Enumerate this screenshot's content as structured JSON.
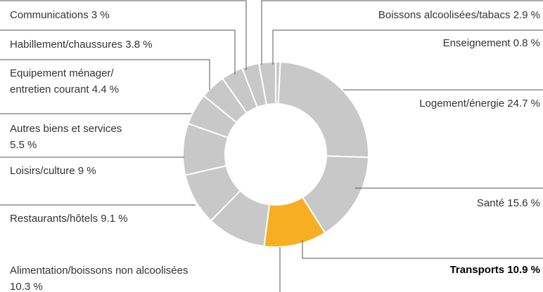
{
  "chart_data": {
    "type": "donut",
    "categories": [
      "Enseignement",
      "Logement/énergie",
      "Santé",
      "Transports",
      "Alimentation/boissons non alcoolisées",
      "Restaurants/hôtels",
      "Loisirs/culture",
      "Autres biens et services",
      "Equipement ménager/\nentretien courant",
      "Habillement/chaussures",
      "Communications",
      "Boissons alcoolisées/tabacs"
    ],
    "values": [
      0.8,
      24.7,
      15.6,
      10.9,
      10.3,
      9.1,
      9,
      5.5,
      4.4,
      3.8,
      3,
      2.9
    ],
    "value_labels": [
      "0.8 %",
      "24.7 %",
      "15.6 %",
      "10.9 %",
      "10.3 %",
      "9.1 %",
      "9 %",
      "5.5 %",
      "4.4 %",
      "3.8 %",
      "3 %",
      "2.9 %"
    ],
    "colors": [
      "#c8c8c8",
      "#c8c8c8",
      "#c8c8c8",
      "#f7ae21",
      "#c8c8c8",
      "#c8c8c8",
      "#c8c8c8",
      "#c8c8c8",
      "#c8c8c8",
      "#c8c8c8",
      "#c8c8c8",
      "#c8c8c8"
    ],
    "highlight_index": 3
  }
}
